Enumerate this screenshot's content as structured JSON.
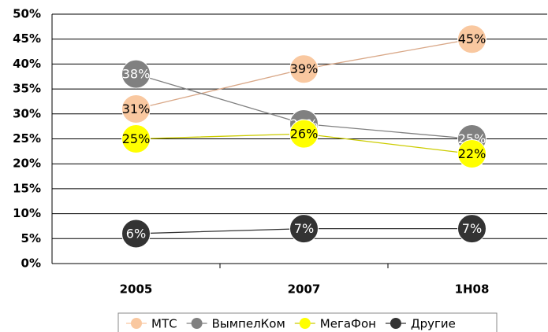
{
  "chart_data": {
    "type": "line",
    "categories": [
      "2005",
      "2007",
      "1H08"
    ],
    "series": [
      {
        "name": "МТС",
        "color": "#f9c8a0",
        "values": [
          31,
          39,
          45
        ],
        "value_labels": [
          "31%",
          "39%",
          "45%"
        ]
      },
      {
        "name": "ВымпелКом",
        "color": "#808080",
        "values": [
          38,
          28,
          25
        ],
        "value_labels": [
          "38%",
          "28%",
          "25%"
        ]
      },
      {
        "name": "МегаФон",
        "color": "#ffff00",
        "values": [
          25,
          26,
          22
        ],
        "value_labels": [
          "25%",
          "26%",
          "22%"
        ]
      },
      {
        "name": "Другие",
        "color": "#333333",
        "values": [
          6,
          7,
          7
        ],
        "value_labels": [
          "6%",
          "7%",
          "7%"
        ]
      }
    ],
    "ylim": [
      0,
      50
    ],
    "yticks": [
      {
        "value": 0,
        "label": "0%"
      },
      {
        "value": 5,
        "label": "5%"
      },
      {
        "value": 10,
        "label": "10%"
      },
      {
        "value": 15,
        "label": "15%"
      },
      {
        "value": 20,
        "label": "20%"
      },
      {
        "value": 25,
        "label": "25%"
      },
      {
        "value": 30,
        "label": "30%"
      },
      {
        "value": 35,
        "label": "35%"
      },
      {
        "value": 40,
        "label": "40%"
      },
      {
        "value": 45,
        "label": "45%"
      },
      {
        "value": 50,
        "label": "50%"
      }
    ],
    "grid": true,
    "legend": "bottom"
  }
}
